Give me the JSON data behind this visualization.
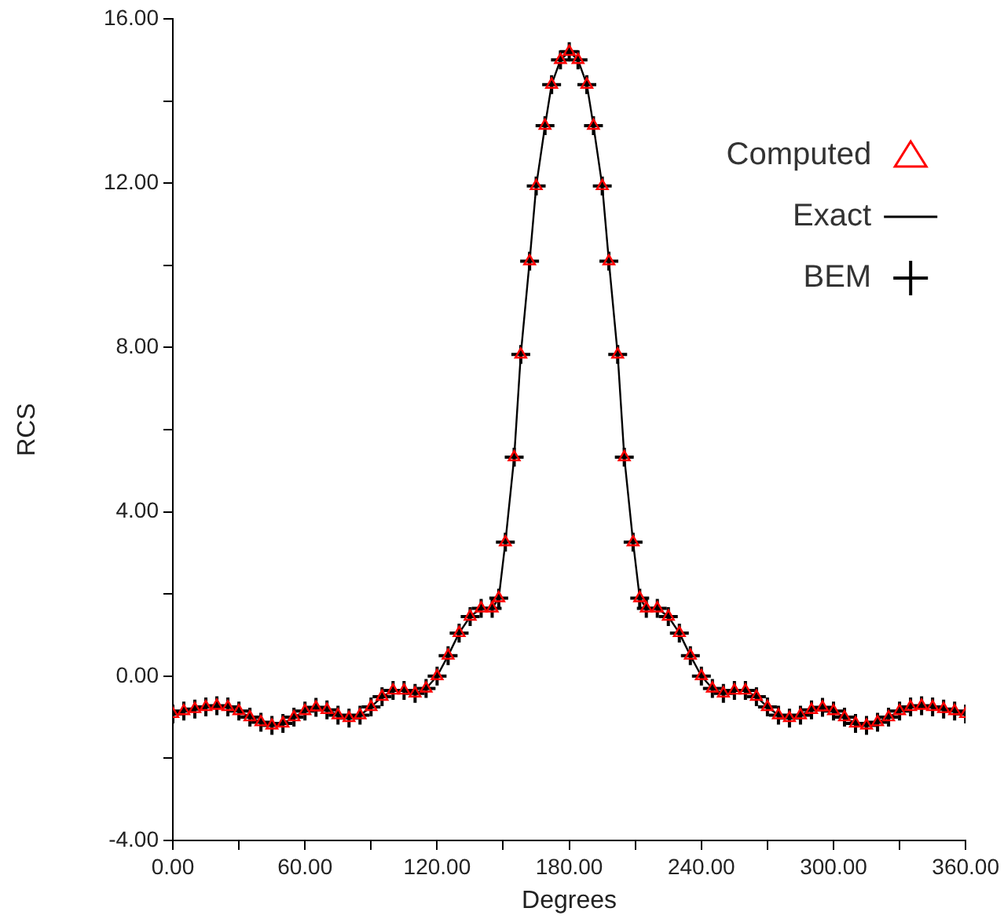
{
  "chart_data": {
    "type": "line",
    "xlabel": "Degrees",
    "ylabel": "RCS",
    "x": [
      0,
      5,
      10,
      15,
      20,
      25,
      30,
      35,
      40,
      45,
      50,
      55,
      60,
      65,
      70,
      75,
      80,
      85,
      90,
      95,
      100,
      105,
      110,
      115,
      120,
      125,
      130,
      135,
      140,
      145,
      148,
      151,
      155,
      158,
      162,
      165,
      169,
      172,
      176,
      180,
      184,
      188,
      191,
      195,
      198,
      202,
      205,
      209,
      212,
      215,
      220,
      225,
      230,
      235,
      240,
      245,
      250,
      255,
      260,
      265,
      270,
      275,
      280,
      285,
      290,
      295,
      300,
      305,
      310,
      315,
      320,
      325,
      330,
      335,
      340,
      345,
      350,
      355,
      360
    ],
    "series": [
      {
        "name": "Computed",
        "color": "#ff0000",
        "type": "scatter",
        "marker": "triangle",
        "values": [
          -0.92,
          -0.85,
          -0.8,
          -0.75,
          -0.72,
          -0.75,
          -0.85,
          -1.0,
          -1.12,
          -1.2,
          -1.15,
          -1.0,
          -0.85,
          -0.76,
          -0.82,
          -0.95,
          -1.02,
          -0.95,
          -0.75,
          -0.5,
          -0.35,
          -0.35,
          -0.42,
          -0.3,
          0.0,
          0.5,
          1.05,
          1.45,
          1.65,
          1.65,
          1.9,
          3.26,
          5.33,
          7.83,
          10.1,
          11.93,
          13.4,
          14.4,
          15.0,
          15.2,
          15.0,
          14.4,
          13.4,
          11.93,
          10.1,
          7.83,
          5.33,
          3.26,
          1.9,
          1.65,
          1.65,
          1.45,
          1.05,
          0.5,
          0.0,
          -0.3,
          -0.42,
          -0.35,
          -0.35,
          -0.5,
          -0.75,
          -0.95,
          -1.02,
          -0.95,
          -0.82,
          -0.76,
          -0.85,
          -1.0,
          -1.15,
          -1.2,
          -1.12,
          -1.0,
          -0.85,
          -0.75,
          -0.72,
          -0.75,
          -0.8,
          -0.85,
          -0.92
        ]
      },
      {
        "name": "Exact",
        "color": "#000000",
        "type": "line",
        "marker": "none",
        "line_style": "solid",
        "values": [
          -0.92,
          -0.85,
          -0.8,
          -0.75,
          -0.72,
          -0.75,
          -0.85,
          -1.0,
          -1.12,
          -1.2,
          -1.15,
          -1.0,
          -0.85,
          -0.76,
          -0.82,
          -0.95,
          -1.02,
          -0.95,
          -0.75,
          -0.5,
          -0.35,
          -0.35,
          -0.42,
          -0.3,
          0.0,
          0.5,
          1.05,
          1.45,
          1.65,
          1.65,
          1.9,
          3.26,
          5.33,
          7.83,
          10.1,
          11.93,
          13.4,
          14.4,
          15.0,
          15.2,
          15.0,
          14.4,
          13.4,
          11.93,
          10.1,
          7.83,
          5.33,
          3.26,
          1.9,
          1.65,
          1.65,
          1.45,
          1.05,
          0.5,
          0.0,
          -0.3,
          -0.42,
          -0.35,
          -0.35,
          -0.5,
          -0.75,
          -0.95,
          -1.02,
          -0.95,
          -0.82,
          -0.76,
          -0.85,
          -1.0,
          -1.15,
          -1.2,
          -1.12,
          -1.0,
          -0.85,
          -0.75,
          -0.72,
          -0.75,
          -0.8,
          -0.85,
          -0.92
        ]
      },
      {
        "name": "BEM",
        "color": "#000000",
        "type": "scatter",
        "marker": "cross",
        "values": [
          -0.92,
          -0.85,
          -0.8,
          -0.75,
          -0.72,
          -0.75,
          -0.85,
          -1.0,
          -1.12,
          -1.2,
          -1.15,
          -1.0,
          -0.85,
          -0.76,
          -0.82,
          -0.95,
          -1.02,
          -0.95,
          -0.75,
          -0.5,
          -0.35,
          -0.35,
          -0.42,
          -0.3,
          0.0,
          0.5,
          1.05,
          1.45,
          1.65,
          1.65,
          1.9,
          3.26,
          5.33,
          7.83,
          10.1,
          11.93,
          13.4,
          14.4,
          15.0,
          15.2,
          15.0,
          14.4,
          13.4,
          11.93,
          10.1,
          7.83,
          5.33,
          3.26,
          1.9,
          1.65,
          1.65,
          1.45,
          1.05,
          0.5,
          0.0,
          -0.3,
          -0.42,
          -0.35,
          -0.35,
          -0.5,
          -0.75,
          -0.95,
          -1.02,
          -0.95,
          -0.82,
          -0.76,
          -0.85,
          -1.0,
          -1.15,
          -1.2,
          -1.12,
          -1.0,
          -0.85,
          -0.75,
          -0.72,
          -0.75,
          -0.8,
          -0.85,
          -0.92
        ]
      }
    ],
    "xlim": [
      0,
      360
    ],
    "xticks": [
      {
        "value": 0,
        "label": "0.00"
      },
      {
        "value": 30,
        "label": null
      },
      {
        "value": 60,
        "label": "60.00"
      },
      {
        "value": 90,
        "label": null
      },
      {
        "value": 120,
        "label": "120.00"
      },
      {
        "value": 150,
        "label": null
      },
      {
        "value": 180,
        "label": "180.00"
      },
      {
        "value": 210,
        "label": null
      },
      {
        "value": 240,
        "label": "240.00"
      },
      {
        "value": 270,
        "label": null
      },
      {
        "value": 300,
        "label": "300.00"
      },
      {
        "value": 330,
        "label": null
      },
      {
        "value": 360,
        "label": "360.00"
      }
    ],
    "ylim": [
      -4,
      16
    ],
    "yticks": [
      {
        "value": -4,
        "label": "-4.00"
      },
      {
        "value": -2,
        "label": null
      },
      {
        "value": 0,
        "label": "0.00"
      },
      {
        "value": 2,
        "label": null
      },
      {
        "value": 4,
        "label": "4.00"
      },
      {
        "value": 6,
        "label": null
      },
      {
        "value": 8,
        "label": "8.00"
      },
      {
        "value": 10,
        "label": null
      },
      {
        "value": 12,
        "label": "12.00"
      },
      {
        "value": 14,
        "label": null
      },
      {
        "value": 16,
        "label": "16.00"
      }
    ],
    "grid": false,
    "legend": "top right"
  }
}
